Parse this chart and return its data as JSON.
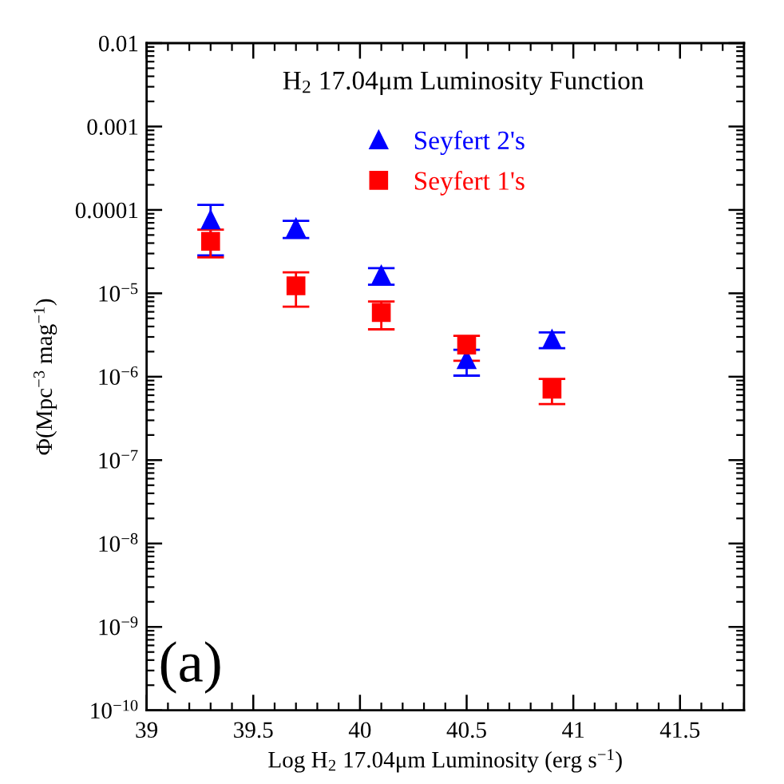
{
  "chart_data": {
    "type": "scatter",
    "title": "H$_{2}$ 17.04μm Luminosity Function",
    "xlabel": "Log H$_{2}$ 17.04μm Luminosity (erg s$^{−1}$)",
    "ylabel": "Φ(Mpc$^{−3}$ mag$^{−1}$)",
    "annotations": [
      "(a)"
    ],
    "x": [
      39.3,
      39.7,
      40.1,
      40.5,
      40.9
    ],
    "series": [
      {
        "name": "Seyfert 2's",
        "color": "#0000ff",
        "marker": "triangle",
        "values": [
          7.6e-05,
          6.1e-05,
          1.66e-05,
          1.6e-06,
          2.8e-06
        ],
        "errors": [
          [
            2.85e-05,
            0.000115
          ],
          [
            4.6e-05,
            7.4e-05
          ],
          [
            1.27e-05,
            2e-05
          ],
          [
            1.03e-06,
            2.1e-06
          ],
          [
            2.2e-06,
            3.4e-06
          ]
        ]
      },
      {
        "name": "Seyfert 1's",
        "color": "#ff0000",
        "marker": "square",
        "values": [
          4.2e-05,
          1.23e-05,
          5.9e-06,
          2.4e-06,
          7.1e-07
        ],
        "errors": [
          [
            2.7e-05,
            5.8e-05
          ],
          [
            6.9e-06,
            1.78e-05
          ],
          [
            3.7e-06,
            8e-06
          ],
          [
            1.55e-06,
            3.1e-06
          ],
          [
            4.7e-07,
            9.4e-07
          ]
        ]
      }
    ],
    "xlim": [
      39,
      41.8
    ],
    "ylim": [
      1e-10,
      0.01
    ],
    "xticks": [
      39,
      39.5,
      40,
      40.5,
      41,
      41.5
    ],
    "yticks": [
      0.01,
      0.001,
      0.0001,
      {
        "value": 1e-05,
        "label": "10$^{−5}$"
      },
      {
        "value": 1e-06,
        "label": "10$^{−6}$"
      },
      {
        "value": 1e-07,
        "label": "10$^{−7}$"
      },
      {
        "value": 1e-08,
        "label": "10$^{−8}$"
      },
      {
        "value": 1e-09,
        "label": "10$^{−9}$"
      },
      {
        "value": 1e-10,
        "label": "10$^{−10}$"
      }
    ],
    "log": "y",
    "legend": "top",
    "grid": false
  }
}
